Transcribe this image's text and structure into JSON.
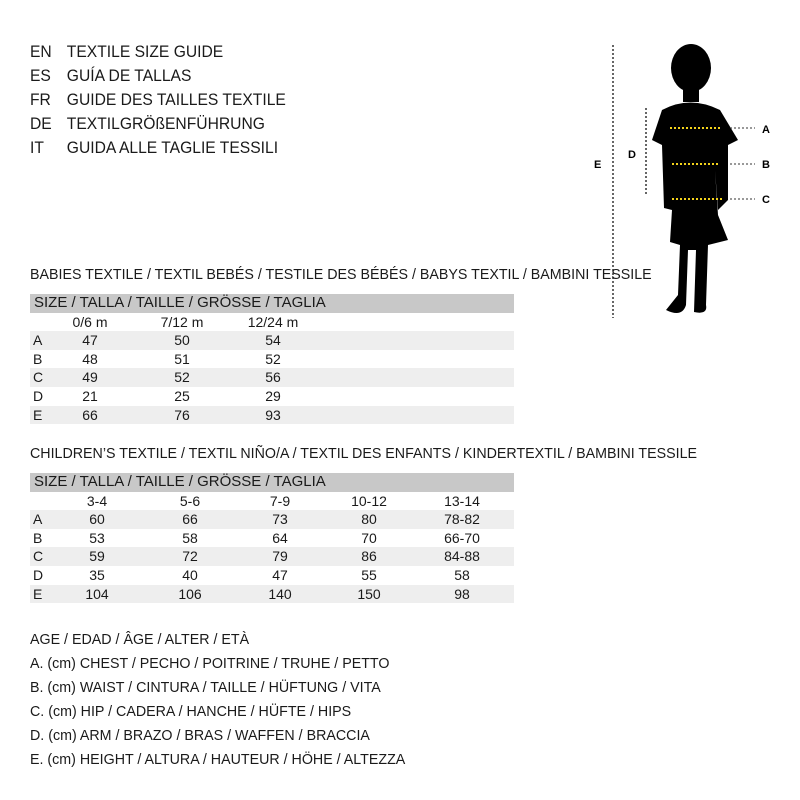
{
  "languages": [
    {
      "code": "EN",
      "text": "TEXTILE SIZE GUIDE"
    },
    {
      "code": "ES",
      "text": "GUÍA DE TALLAS"
    },
    {
      "code": "FR",
      "text": "GUIDE DES TAILLES TEXTILE"
    },
    {
      "code": "DE",
      "text": "TEXTILGRÖßENFÜHRUNG"
    },
    {
      "code": "IT",
      "text": "GUIDA ALLE TAGLIE TESSILI"
    }
  ],
  "figure": {
    "labels": {
      "a": "A",
      "b": "B",
      "c": "C",
      "d": "D",
      "e": "E"
    },
    "accent": "#f2d21b"
  },
  "babies": {
    "title": "BABIES TEXTILE / TEXTIL BEBÉS / TESTILE DES BÉBÉS / BABYS TEXTIL / BAMBINI TESSILE",
    "header": "SIZE / TALLA / TAILLE / GRÖSSE / TAGLIA",
    "columns": [
      "0/6 m",
      "7/12 m",
      "12/24 m"
    ],
    "rows": [
      {
        "label": "A",
        "values": [
          "47",
          "50",
          "54"
        ]
      },
      {
        "label": "B",
        "values": [
          "48",
          "51",
          "52"
        ]
      },
      {
        "label": "C",
        "values": [
          "49",
          "52",
          "56"
        ]
      },
      {
        "label": "D",
        "values": [
          "21",
          "25",
          "29"
        ]
      },
      {
        "label": "E",
        "values": [
          "66",
          "76",
          "93"
        ]
      }
    ]
  },
  "children": {
    "title": "CHILDREN’S TEXTILE / TEXTIL NIÑO/A / TEXTIL DES ENFANTS / KINDERTEXTIL / BAMBINI TESSILE",
    "header": "SIZE / TALLA / TAILLE / GRÖSSE / TAGLIA",
    "columns": [
      "3-4",
      "5-6",
      "7-9",
      "10-12",
      "13-14"
    ],
    "rows": [
      {
        "label": "A",
        "values": [
          "60",
          "66",
          "73",
          "80",
          "78-82"
        ]
      },
      {
        "label": "B",
        "values": [
          "53",
          "58",
          "64",
          "70",
          "66-70"
        ]
      },
      {
        "label": "C",
        "values": [
          "59",
          "72",
          "79",
          "86",
          "84-88"
        ]
      },
      {
        "label": "D",
        "values": [
          "35",
          "40",
          "47",
          "55",
          "58"
        ]
      },
      {
        "label": "E",
        "values": [
          "104",
          "106",
          "140",
          "150",
          "98"
        ]
      }
    ]
  },
  "legend": [
    "AGE / EDAD / ÂGE / ALTER / ETÀ",
    "A. (cm) CHEST / PECHO / POITRINE / TRUHE / PETTO",
    "B. (cm) WAIST / CINTURA / TAILLE / HÜFTUNG / VITA",
    "C. (cm) HIP / CADERA / HANCHE / HÜFTE / HIPS",
    "D. (cm) ARM / BRAZO / BRAS / WAFFEN / BRACCIA",
    "E. (cm) HEIGHT / ALTURA / HAUTEUR / HÖHE / ALTEZZA"
  ]
}
